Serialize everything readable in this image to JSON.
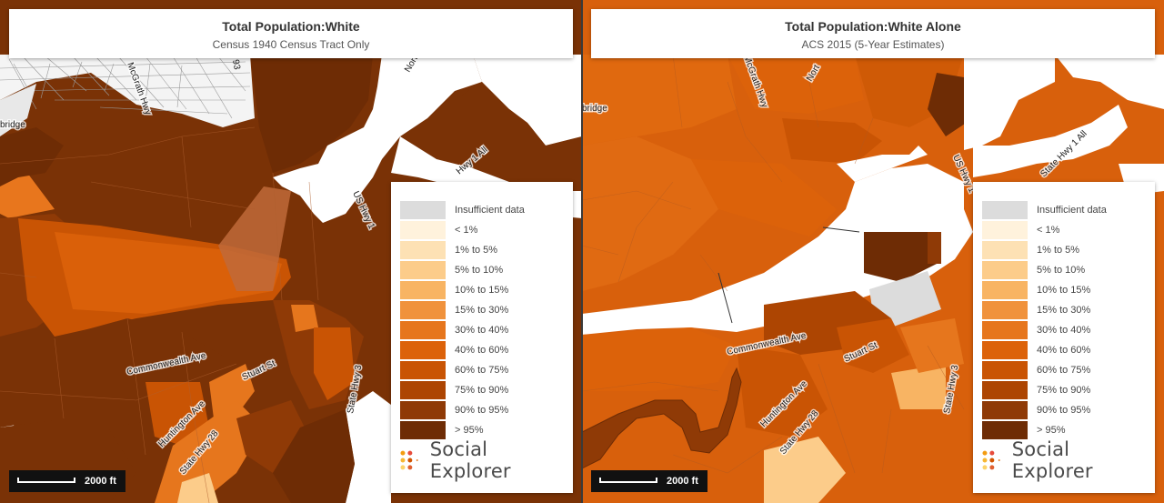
{
  "colors": {
    "insufficient": "#dcdcdc",
    "lt1": "#fff2dc",
    "p1_5": "#fde1b4",
    "p5_10": "#fccc8a",
    "p10_15": "#f8b463",
    "p15_30": "#f0923c",
    "p30_40": "#e6761d",
    "p40_60": "#dc620a",
    "p60_75": "#c95404",
    "p75_90": "#ad4502",
    "p90_95": "#8f3a06",
    "gt95": "#6e2c05",
    "water": "#ffffff"
  },
  "legend": {
    "items": [
      {
        "label": "Insufficient data",
        "color": "#dcdcdc"
      },
      {
        "label": "< 1%",
        "color": "#fff2dc"
      },
      {
        "label": "1% to 5%",
        "color": "#fde1b4"
      },
      {
        "label": "5% to 10%",
        "color": "#fccc8a"
      },
      {
        "label": "10% to 15%",
        "color": "#f8b463"
      },
      {
        "label": "15% to 30%",
        "color": "#f0923c"
      },
      {
        "label": "30% to 40%",
        "color": "#e6761d"
      },
      {
        "label": "40% to 60%",
        "color": "#dc620a"
      },
      {
        "label": "60% to 75%",
        "color": "#c95404"
      },
      {
        "label": "75% to 90%",
        "color": "#ad4502"
      },
      {
        "label": "90% to 95%",
        "color": "#8f3a06"
      },
      {
        "label": "> 95%",
        "color": "#6e2c05"
      }
    ],
    "brand": "Social Explorer"
  },
  "left_map": {
    "title": "Total Population:White",
    "subtitle": "Census 1940 Census Tract Only",
    "scale_label": "2000 ft",
    "road_labels": {
      "mcgrath": "McGrath Hwy",
      "bridge": "bridge",
      "hwy1": "Hwy 1 All",
      "us1": "US Hwy 1",
      "commonwealth": "Commonwealth Ave",
      "stuart": "Stuart St",
      "huntington": "Huntington Ave",
      "statehwy28": "State Hwy 28",
      "statehwy3": "State Hwy 3",
      "num93": "93",
      "nort": "Nort"
    }
  },
  "right_map": {
    "title": "Total Population:White Alone",
    "subtitle": "ACS 2015 (5-Year Estimates)",
    "scale_label": "2000 ft",
    "road_labels": {
      "bridge": "bridge",
      "mcgrath": "McGrath Hwy",
      "nort": "Nort",
      "us1": "US Hwy 1",
      "statehwy1": "State Hwy 1 All",
      "commonwealth": "Commonwealth Ave",
      "stuart": "Stuart St",
      "huntington": "Huntington Ave",
      "statehwy28": "State Hwy 28",
      "statehwy3": "State Hwy 3"
    }
  }
}
